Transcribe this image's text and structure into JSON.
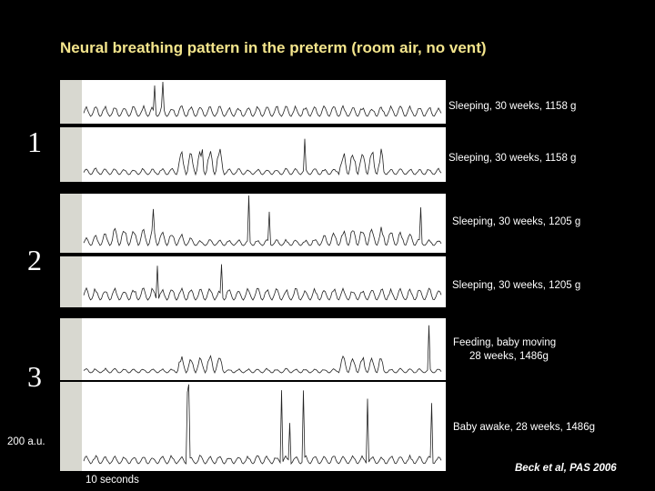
{
  "title": "Neural breathing pattern in the preterm (room air, no vent)",
  "groups": [
    {
      "number": "1",
      "panels": [
        {
          "label_lines": [
            "Sleeping, 30 weeks, 1158 g"
          ]
        },
        {
          "label_lines": [
            "Sleeping, 30 weeks, 1158 g"
          ]
        }
      ]
    },
    {
      "number": "2",
      "panels": [
        {
          "label_lines": [
            "Sleeping, 30 weeks, 1205 g"
          ]
        },
        {
          "label_lines": [
            "Sleeping, 30 weeks, 1205 g"
          ]
        }
      ]
    },
    {
      "number": "3",
      "panels": [
        {
          "label_lines": [
            "Feeding, baby moving",
            "28 weeks, 1486g"
          ]
        },
        {
          "label_lines": [
            "Baby awake, 28 weeks, 1486g"
          ]
        }
      ]
    }
  ],
  "scale_label": "200 a.u.",
  "time_label": "10 seconds",
  "citation": "Beck et al, PAS 2006"
}
